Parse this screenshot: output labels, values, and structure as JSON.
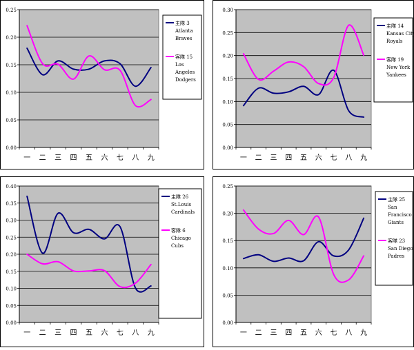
{
  "chart_data": [
    {
      "type": "line",
      "categories": [
        "一",
        "二",
        "三",
        "四",
        "五",
        "六",
        "七",
        "八",
        "九"
      ],
      "ylim": [
        0,
        0.25
      ],
      "yticks": [
        "0.00",
        "0.05",
        "0.10",
        "0.15",
        "0.20",
        "0.25"
      ],
      "grid": true,
      "legend_position": "right",
      "series": [
        {
          "name": "主隊 3 Atlanta Braves",
          "legend_lines": [
            "主隊 3",
            "Atlanta",
            "Braves"
          ],
          "color": "#000080",
          "values": [
            0.18,
            0.132,
            0.157,
            0.142,
            0.142,
            0.157,
            0.152,
            0.111,
            0.145
          ]
        },
        {
          "name": "客隊 15 Los Angeles Dodgers",
          "legend_lines": [
            "客隊 15",
            "Los",
            "Angeles",
            "Dodgers"
          ],
          "color": "#ff00ff",
          "values": [
            0.221,
            0.152,
            0.151,
            0.124,
            0.166,
            0.141,
            0.14,
            0.076,
            0.087
          ]
        }
      ]
    },
    {
      "type": "line",
      "categories": [
        "一",
        "二",
        "三",
        "四",
        "五",
        "六",
        "七",
        "八",
        "九"
      ],
      "ylim": [
        0,
        0.3
      ],
      "yticks": [
        "0.00",
        "0.05",
        "0.10",
        "0.15",
        "0.20",
        "0.25",
        "0.30"
      ],
      "grid": true,
      "legend_position": "right",
      "series": [
        {
          "name": "主隊 14 Kansas City Royals",
          "legend_lines": [
            "主隊 14",
            "Kansas City",
            "Royals"
          ],
          "color": "#000080",
          "values": [
            0.091,
            0.129,
            0.118,
            0.121,
            0.133,
            0.115,
            0.168,
            0.08,
            0.066
          ]
        },
        {
          "name": "客隊 19 New York Yankees",
          "legend_lines": [
            "客隊 19",
            "New York",
            "Yankees"
          ],
          "color": "#ff00ff",
          "values": [
            0.204,
            0.148,
            0.166,
            0.186,
            0.176,
            0.139,
            0.152,
            0.266,
            0.201
          ]
        }
      ]
    },
    {
      "type": "line",
      "categories": [
        "一",
        "二",
        "三",
        "四",
        "五",
        "六",
        "七",
        "八",
        "九"
      ],
      "ylim": [
        0,
        0.4
      ],
      "yticks": [
        "0.00",
        "0.05",
        "0.10",
        "0.15",
        "0.20",
        "0.25",
        "0.30",
        "0.35",
        "0.40"
      ],
      "grid": true,
      "legend_position": "right",
      "series": [
        {
          "name": "主隊 26 St.Louis Cardinals",
          "legend_lines": [
            "主隊 26",
            "St.Louis",
            "Cardinals"
          ],
          "color": "#000080",
          "values": [
            0.37,
            0.203,
            0.32,
            0.263,
            0.273,
            0.245,
            0.281,
            0.101,
            0.107
          ]
        },
        {
          "name": "客隊 6 Chicago Cubs",
          "legend_lines": [
            "客隊 6",
            "Chicago",
            "Cubs"
          ],
          "color": "#ff00ff",
          "values": [
            0.2,
            0.172,
            0.178,
            0.151,
            0.151,
            0.152,
            0.105,
            0.115,
            0.17
          ]
        }
      ]
    },
    {
      "type": "line",
      "categories": [
        "一",
        "二",
        "三",
        "四",
        "五",
        "六",
        "七",
        "八",
        "九"
      ],
      "ylim": [
        0,
        0.25
      ],
      "yticks": [
        "0.00",
        "0.05",
        "0.10",
        "0.15",
        "0.20",
        "0.25"
      ],
      "grid": true,
      "legend_position": "right",
      "series": [
        {
          "name": "主隊 25 San Francisco Giants",
          "legend_lines": [
            "主隊 25",
            "San",
            "Francisco",
            "Giants"
          ],
          "color": "#000080",
          "values": [
            0.117,
            0.124,
            0.112,
            0.118,
            0.113,
            0.148,
            0.122,
            0.133,
            0.191
          ]
        },
        {
          "name": "客隊 23 San Diego Padres",
          "legend_lines": [
            "客隊 23",
            "San Diego",
            "Padres"
          ],
          "color": "#ff00ff",
          "values": [
            0.206,
            0.171,
            0.163,
            0.187,
            0.161,
            0.193,
            0.088,
            0.078,
            0.122
          ]
        }
      ]
    }
  ]
}
